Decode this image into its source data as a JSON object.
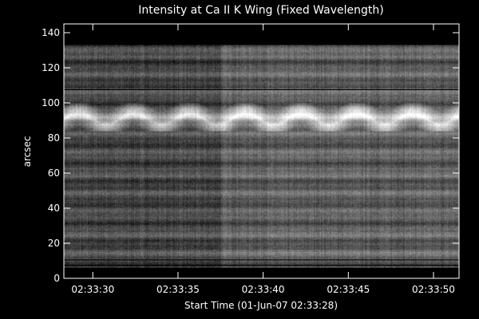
{
  "chart_data": {
    "type": "heatmap",
    "title": "Intensity at Ca II K Wing (Fixed Wavelength)",
    "xlabel": "Start Time (01-Jun-07 02:33:28)",
    "ylabel": "arcsec",
    "x_ticks": [
      "02:33:30",
      "02:33:35",
      "02:33:40",
      "02:33:45",
      "02:33:50"
    ],
    "x_tick_seconds": [
      2,
      7,
      12,
      17,
      22
    ],
    "xlim_seconds": [
      0.3,
      23.5
    ],
    "y_ticks": [
      0,
      20,
      40,
      60,
      80,
      100,
      120,
      140
    ],
    "ylim": [
      0,
      145
    ],
    "data_yrange": [
      6,
      133
    ],
    "colormap": "grayscale",
    "intensity_profile": {
      "bright_band_arcsec": [
        84,
        100
      ],
      "dark_lines_arcsec": [
        107.5,
        7.5,
        10.5
      ],
      "brightness_step_time_s": 9.5
    },
    "grid": false,
    "colors": {
      "background": "#000000",
      "foreground": "#ffffff"
    }
  }
}
